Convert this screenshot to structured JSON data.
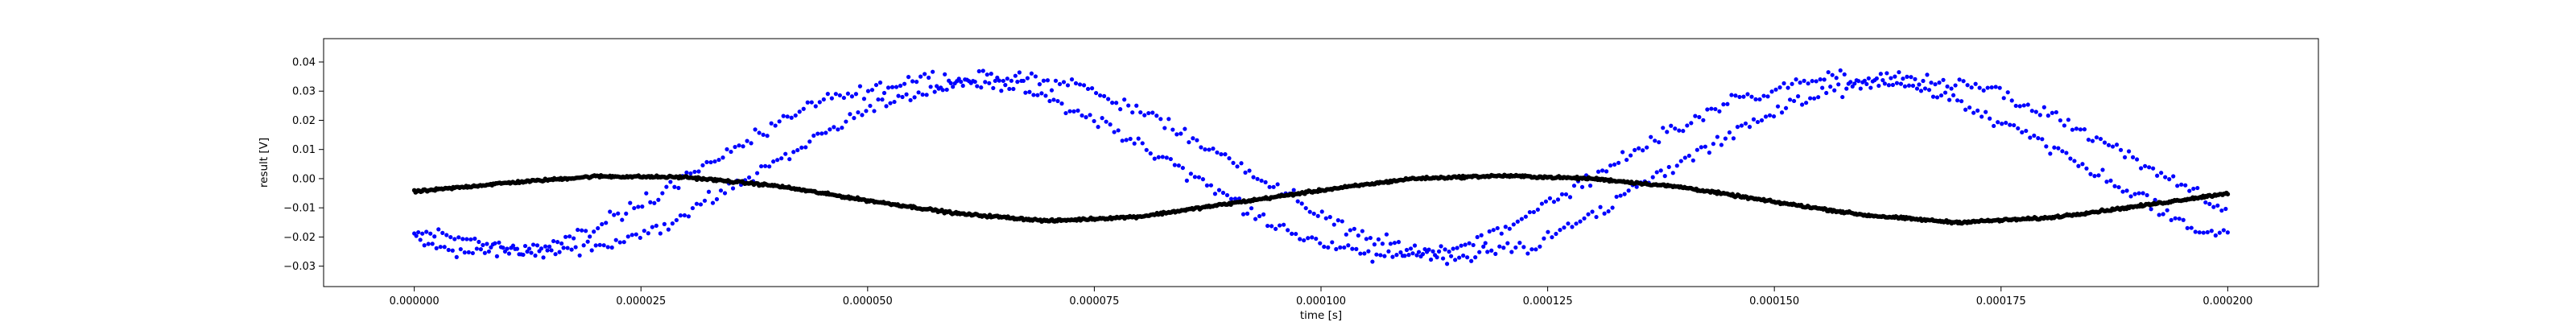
{
  "chart_data": {
    "type": "scatter",
    "title": "",
    "xlabel": "time [s]",
    "ylabel": "result [V]",
    "xlim": [
      -1e-05,
      0.00021
    ],
    "ylim": [
      -0.037,
      0.048
    ],
    "grid": false,
    "x_ticks": [
      0.0,
      2.5e-05,
      5e-05,
      7.5e-05,
      0.0001,
      0.000125,
      0.00015,
      0.000175,
      0.0002
    ],
    "x_tick_labels": [
      "0.000000",
      "0.000025",
      "0.000050",
      "0.000075",
      "0.000100",
      "0.000125",
      "0.000150",
      "0.000175",
      "0.000200"
    ],
    "y_ticks": [
      -0.03,
      -0.02,
      -0.01,
      0.0,
      0.01,
      0.02,
      0.03,
      0.04
    ],
    "y_tick_labels": [
      "−0.03",
      "−0.02",
      "−0.01",
      "0.00",
      "0.01",
      "0.02",
      "0.03",
      "0.04"
    ],
    "series": [
      {
        "color": "#0000ff",
        "marker": "dot",
        "description_points": "noisy sinusoid, two overlapping traces",
        "x": [
          0.0,
          1e-05,
          2e-05,
          3e-05,
          4e-05,
          5e-05,
          6e-05,
          7e-05,
          8e-05,
          9e-05,
          0.0001,
          0.00011,
          0.00012,
          0.00013,
          0.00014,
          0.00015,
          0.00016,
          0.00017,
          0.00018,
          0.00019,
          0.0002
        ],
        "y": [
          -0.019,
          -0.026,
          -0.022,
          -0.006,
          0.013,
          0.028,
          0.035,
          0.032,
          0.018,
          0.0,
          -0.019,
          -0.027,
          -0.023,
          -0.006,
          0.013,
          0.028,
          0.035,
          0.031,
          0.017,
          0.0,
          -0.018
        ]
      },
      {
        "color": "#000000",
        "marker": "dot",
        "x": [
          0.0,
          1e-05,
          2e-05,
          3e-05,
          4e-05,
          5e-05,
          6e-05,
          7e-05,
          8e-05,
          9e-05,
          0.0001,
          0.00011,
          0.00012,
          0.00013,
          0.00014,
          0.00015,
          0.00016,
          0.00017,
          0.00018,
          0.00019,
          0.0002
        ],
        "y": [
          -0.0045,
          -0.0015,
          0.0008,
          0.0005,
          -0.0025,
          -0.0075,
          -0.012,
          -0.0145,
          -0.013,
          -0.0085,
          -0.004,
          0.0,
          0.001,
          0.0,
          -0.003,
          -0.008,
          -0.0125,
          -0.015,
          -0.0135,
          -0.0095,
          -0.005
        ]
      }
    ]
  }
}
